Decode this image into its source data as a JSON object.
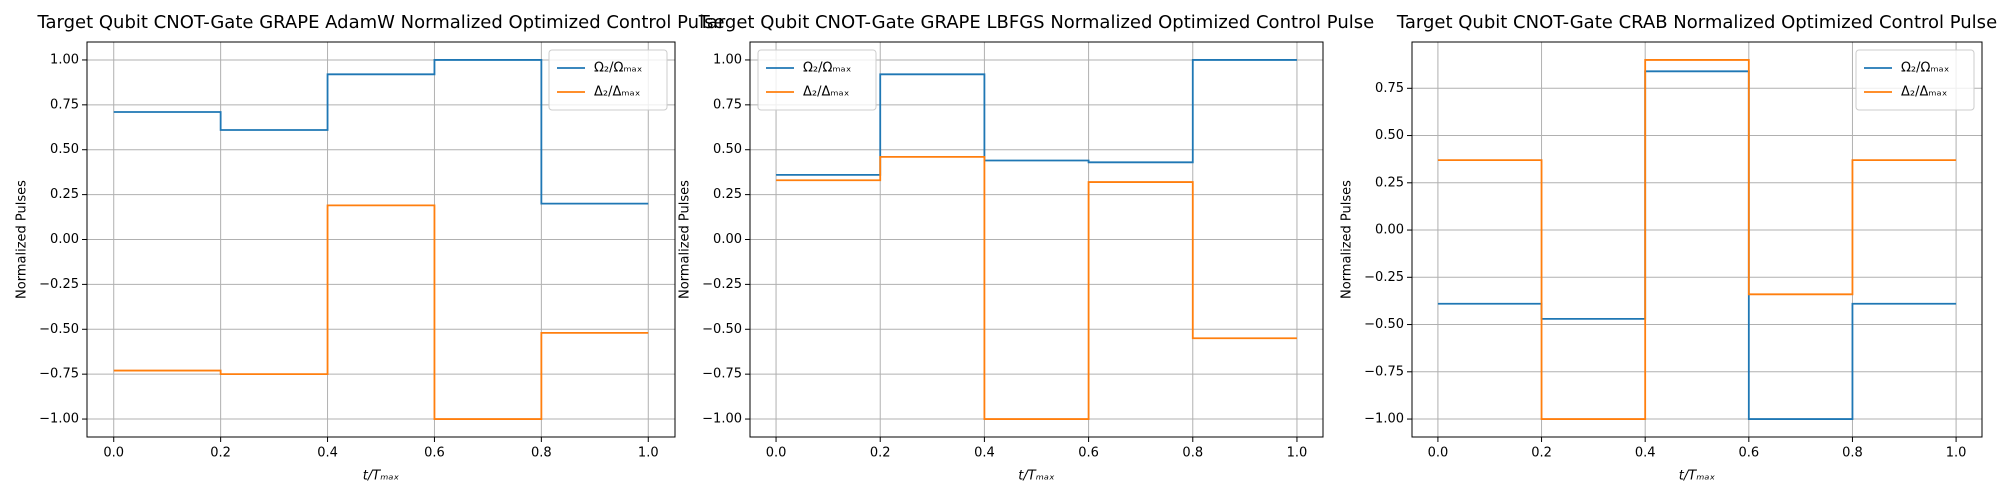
{
  "chart_data": [
    {
      "type": "line",
      "step": "post",
      "title": "Target Qubit CNOT-Gate GRAPE AdamW Normalized Optimized Control Pulse",
      "xlabel": "t/Tₘₐₓ",
      "ylabel": "Normalized Pulses",
      "grid": true,
      "legend": "upper right",
      "x": [
        0,
        0.2,
        0.4,
        0.6,
        0.8,
        1.0
      ],
      "series": [
        {
          "name": "Ω₂/Ωₘₐₓ",
          "color": "#1f77b4",
          "values": [
            0.71,
            0.61,
            0.92,
            1.0,
            0.2,
            0.2
          ]
        },
        {
          "name": "Δ₂/Δₘₐₓ",
          "color": "#ff7f0e",
          "values": [
            -0.73,
            -0.75,
            0.19,
            -1.0,
            -0.52,
            -0.52
          ]
        }
      ],
      "xlim": [
        -0.05,
        1.05
      ],
      "xticks": [
        {
          "value": 0,
          "label": "0.0"
        },
        {
          "value": 0.2,
          "label": "0.2"
        },
        {
          "value": 0.4,
          "label": "0.4"
        },
        {
          "value": 0.6,
          "label": "0.6"
        },
        {
          "value": 0.8,
          "label": "0.8"
        },
        {
          "value": 1.0,
          "label": "1.0"
        }
      ],
      "ylim": [
        -1.1,
        1.1
      ],
      "yticks": [
        {
          "value": -1,
          "label": "−1.00"
        },
        {
          "value": -0.75,
          "label": "−0.75"
        },
        {
          "value": -0.5,
          "label": "−0.50"
        },
        {
          "value": -0.25,
          "label": "−0.25"
        },
        {
          "value": 0,
          "label": "0.00"
        },
        {
          "value": 0.25,
          "label": "0.25"
        },
        {
          "value": 0.5,
          "label": "0.50"
        },
        {
          "value": 0.75,
          "label": "0.75"
        },
        {
          "value": 1,
          "label": "1.00"
        }
      ]
    },
    {
      "type": "line",
      "step": "post",
      "title": "Target Qubit CNOT-Gate GRAPE LBFGS Normalized Optimized Control Pulse",
      "xlabel": "t/Tₘₐₓ",
      "ylabel": "Normalized Pulses",
      "grid": true,
      "legend": "upper left",
      "x": [
        0,
        0.2,
        0.4,
        0.6,
        0.8,
        1.0
      ],
      "series": [
        {
          "name": "Ω₂/Ωₘₐₓ",
          "color": "#1f77b4",
          "values": [
            0.36,
            0.92,
            0.44,
            0.43,
            1.0,
            1.0
          ]
        },
        {
          "name": "Δ₂/Δₘₐₓ",
          "color": "#ff7f0e",
          "values": [
            0.33,
            0.46,
            -1.0,
            0.32,
            -0.55,
            -0.55
          ]
        }
      ],
      "xlim": [
        -0.05,
        1.05
      ],
      "xticks": [
        {
          "value": 0,
          "label": "0.0"
        },
        {
          "value": 0.2,
          "label": "0.2"
        },
        {
          "value": 0.4,
          "label": "0.4"
        },
        {
          "value": 0.6,
          "label": "0.6"
        },
        {
          "value": 0.8,
          "label": "0.8"
        },
        {
          "value": 1.0,
          "label": "1.0"
        }
      ],
      "ylim": [
        -1.1,
        1.1
      ],
      "yticks": [
        {
          "value": -1,
          "label": "−1.00"
        },
        {
          "value": -0.75,
          "label": "−0.75"
        },
        {
          "value": -0.5,
          "label": "−0.50"
        },
        {
          "value": -0.25,
          "label": "−0.25"
        },
        {
          "value": 0,
          "label": "0.00"
        },
        {
          "value": 0.25,
          "label": "0.25"
        },
        {
          "value": 0.5,
          "label": "0.50"
        },
        {
          "value": 0.75,
          "label": "0.75"
        },
        {
          "value": 1,
          "label": "1.00"
        }
      ]
    },
    {
      "type": "line",
      "step": "post",
      "title": "Target Qubit CNOT-Gate CRAB Normalized Optimized Control Pulse",
      "xlabel": "t/Tₘₐₓ",
      "ylabel": "Normalized Pulses",
      "grid": true,
      "legend": "upper right",
      "x": [
        0,
        0.2,
        0.4,
        0.6,
        0.8,
        1.0
      ],
      "series": [
        {
          "name": "Ω₂/Ωₘₐₓ",
          "color": "#1f77b4",
          "values": [
            -0.39,
            -0.47,
            0.84,
            -1.0,
            -0.39,
            -0.39
          ]
        },
        {
          "name": "Δ₂/Δₘₐₓ",
          "color": "#ff7f0e",
          "values": [
            0.37,
            -1.0,
            0.9,
            -0.34,
            0.37,
            0.37
          ]
        }
      ],
      "xlim": [
        -0.05,
        1.05
      ],
      "xticks": [
        {
          "value": 0,
          "label": "0.0"
        },
        {
          "value": 0.2,
          "label": "0.2"
        },
        {
          "value": 0.4,
          "label": "0.4"
        },
        {
          "value": 0.6,
          "label": "0.6"
        },
        {
          "value": 0.8,
          "label": "0.8"
        },
        {
          "value": 1.0,
          "label": "1.0"
        }
      ],
      "ylim": [
        -1.095,
        0.995
      ],
      "yticks": [
        {
          "value": -1,
          "label": "−1.00"
        },
        {
          "value": -0.75,
          "label": "−0.75"
        },
        {
          "value": -0.5,
          "label": "−0.50"
        },
        {
          "value": -0.25,
          "label": "−0.25"
        },
        {
          "value": 0,
          "label": "0.00"
        },
        {
          "value": 0.25,
          "label": "0.25"
        },
        {
          "value": 0.5,
          "label": "0.50"
        },
        {
          "value": 0.75,
          "label": "0.75"
        }
      ]
    }
  ]
}
